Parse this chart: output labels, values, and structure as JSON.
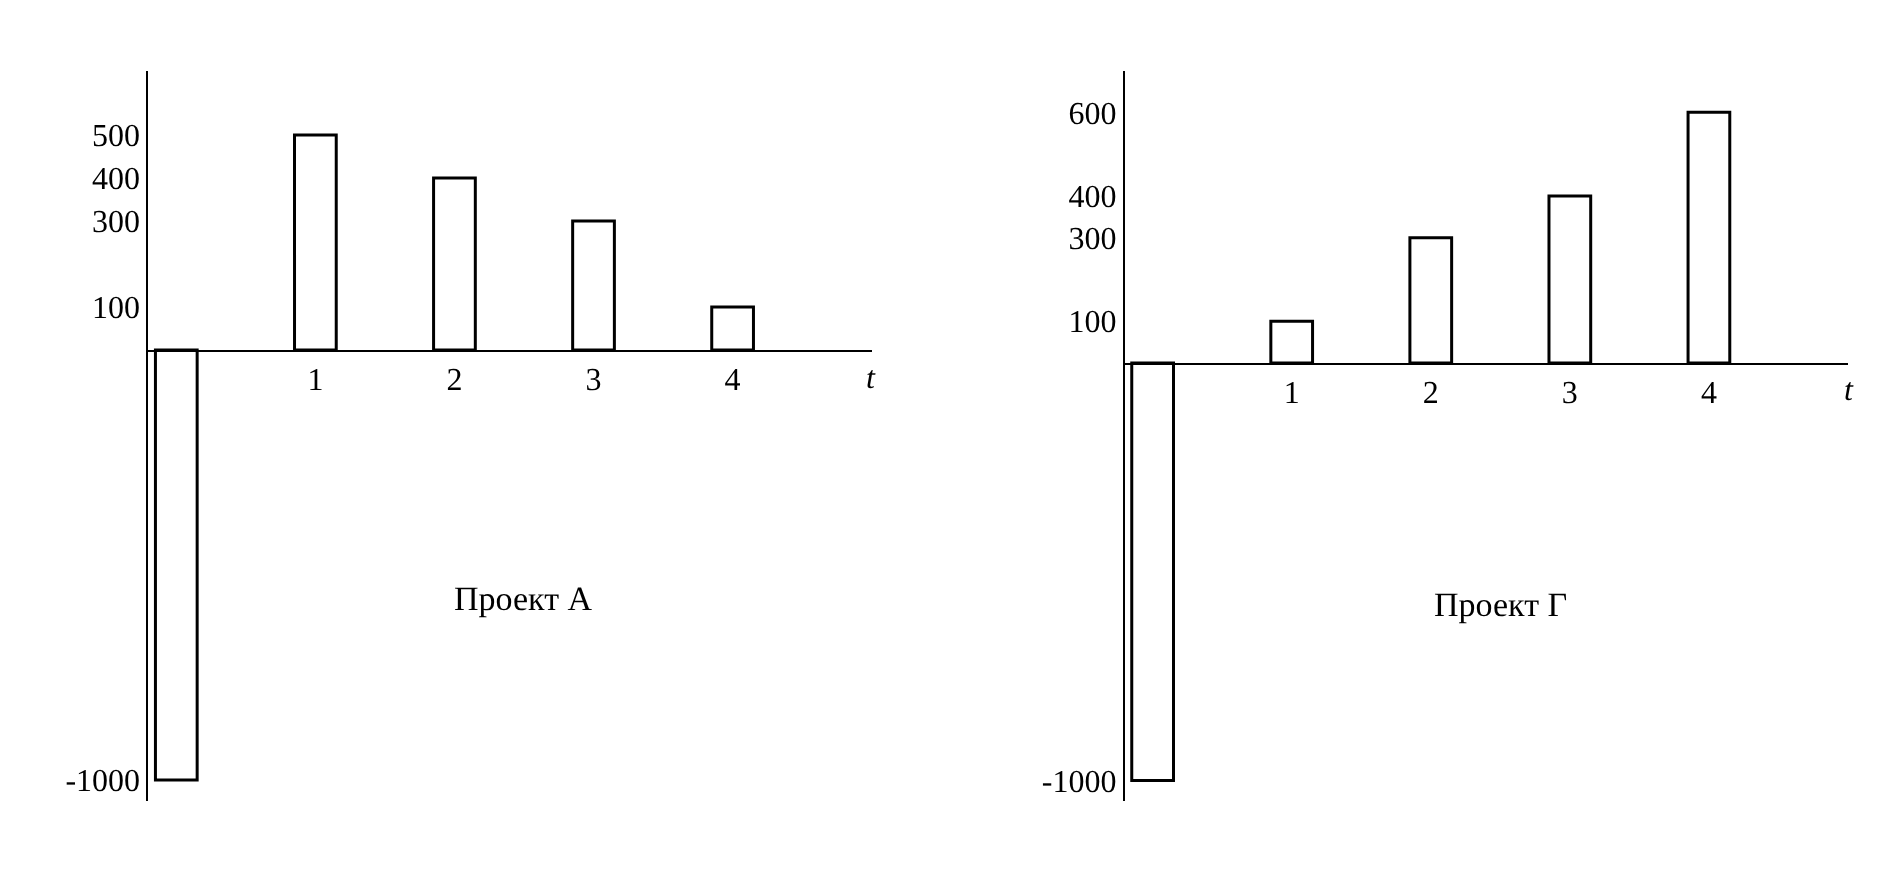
{
  "chart_data": [
    {
      "type": "bar",
      "title": "Проект А",
      "xlabel": "t",
      "x": [
        0,
        1,
        2,
        3,
        4
      ],
      "values": [
        -1000,
        500,
        400,
        300,
        100
      ],
      "color": "#ffffff",
      "xlim": [
        -0.2,
        5
      ],
      "xticks": [
        1,
        2,
        3,
        4
      ],
      "ylim": [
        -1050,
        650
      ],
      "yticks": [
        -1000,
        100,
        300,
        400,
        500
      ]
    },
    {
      "type": "bar",
      "title": "Проект Г",
      "xlabel": "t",
      "x": [
        0,
        1,
        2,
        3,
        4
      ],
      "values": [
        -1000,
        100,
        300,
        400,
        600
      ],
      "color": "#ffffff",
      "xlim": [
        -0.2,
        5
      ],
      "xticks": [
        1,
        2,
        3,
        4
      ],
      "ylim": [
        -1050,
        700
      ],
      "yticks": [
        -1000,
        100,
        300,
        400,
        600
      ]
    }
  ]
}
